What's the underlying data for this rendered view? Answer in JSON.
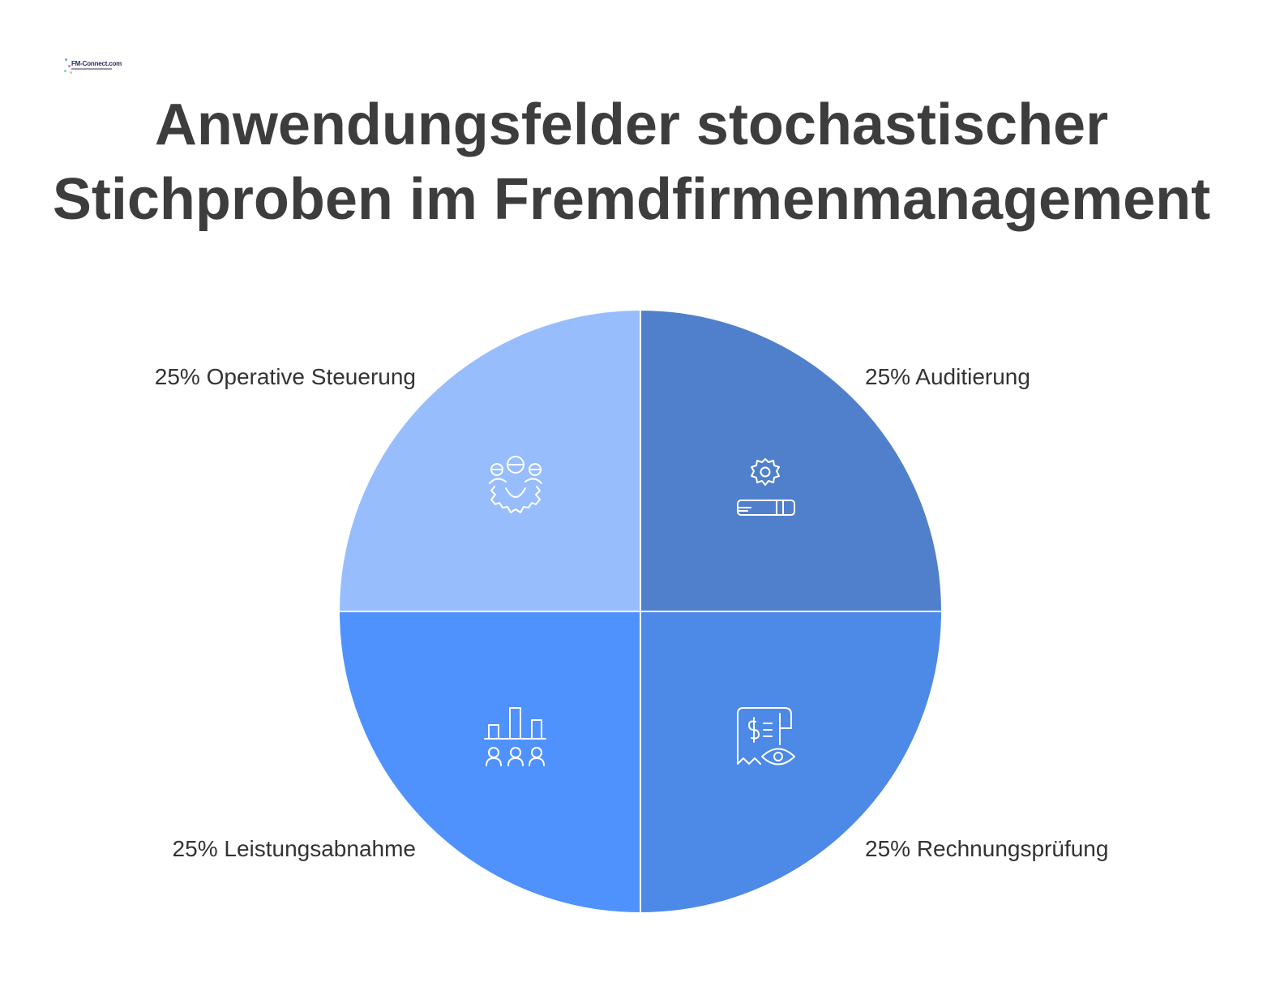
{
  "logo": {
    "text": "FM-Connect.com"
  },
  "chart_data": {
    "type": "pie",
    "title": [
      "Anwendungsfelder stochastischer",
      "Stichproben im Fremdfirmenmanagement"
    ],
    "slices": [
      {
        "label": "Auditierung",
        "value": 25,
        "display": "25% Auditierung",
        "color": "#5080cb",
        "icon": "gear-document-icon"
      },
      {
        "label": "Rechnungsprüfung",
        "value": 25,
        "display": "25% Rechnungsprüfung",
        "color": "#4d89e7",
        "icon": "invoice-eye-icon"
      },
      {
        "label": "Leistungsabnahme",
        "value": 25,
        "display": "25% Leistungsabnahme",
        "color": "#4f91fd",
        "icon": "bar-chart-team-icon"
      },
      {
        "label": "Operative Steuerung",
        "value": 25,
        "display": "25% Operative Steuerung",
        "color": "#97bdfd",
        "icon": "gear-team-icon"
      }
    ],
    "legend": "none"
  }
}
